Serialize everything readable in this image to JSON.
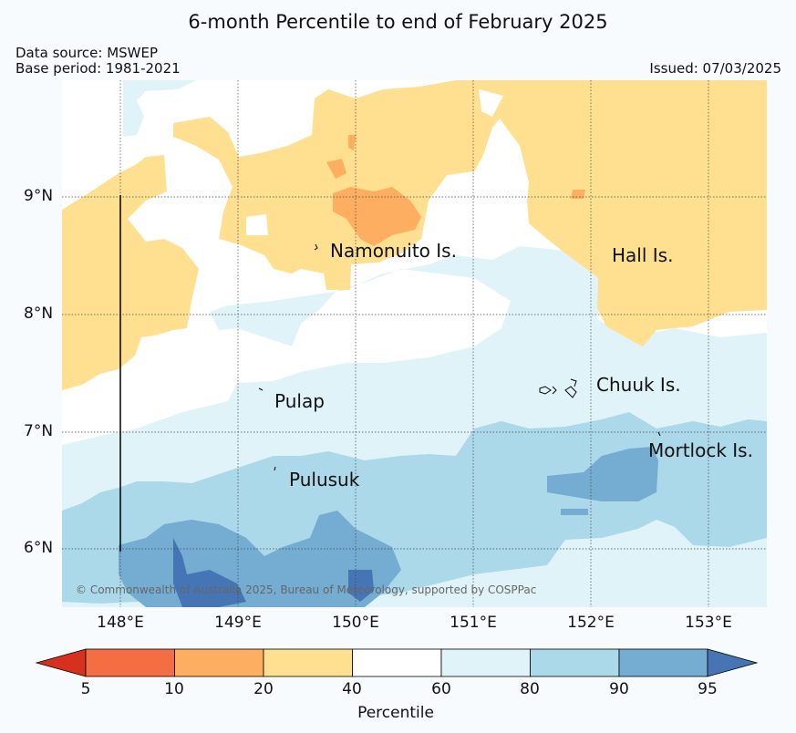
{
  "title": "6-month Percentile to end of February 2025",
  "data_source": "Data source: MSWEP",
  "base_period": "Base period: 1981-2021",
  "issued": "Issued: 07/03/2025",
  "copyright": "© Commonwealth of Australia 2025, Bureau of Meteorology, supported by COSPPac",
  "lat_labels": [
    "9°N",
    "8°N",
    "7°N",
    "6°N"
  ],
  "lon_labels": [
    "148°E",
    "149°E",
    "150°E",
    "151°E",
    "152°E",
    "153°E"
  ],
  "places": [
    "Namonuito Is.",
    "Hall Is.",
    "Chuuk Is.",
    "Pulap",
    "Pulusuk",
    "Mortlock Is."
  ],
  "colorbar": {
    "title": "Percentile",
    "ticks": [
      "5",
      "10",
      "20",
      "40",
      "60",
      "80",
      "90",
      "95"
    ],
    "colors": {
      "below_5": "#d7301f",
      "5_10": "#f46d43",
      "10_20": "#fdae61",
      "20_40": "#fee090",
      "40_60": "#ffffff",
      "60_80": "#e0f3f8",
      "80_90": "#abd9e9",
      "90_95": "#74add1",
      "above_95": "#4575b4"
    }
  }
}
